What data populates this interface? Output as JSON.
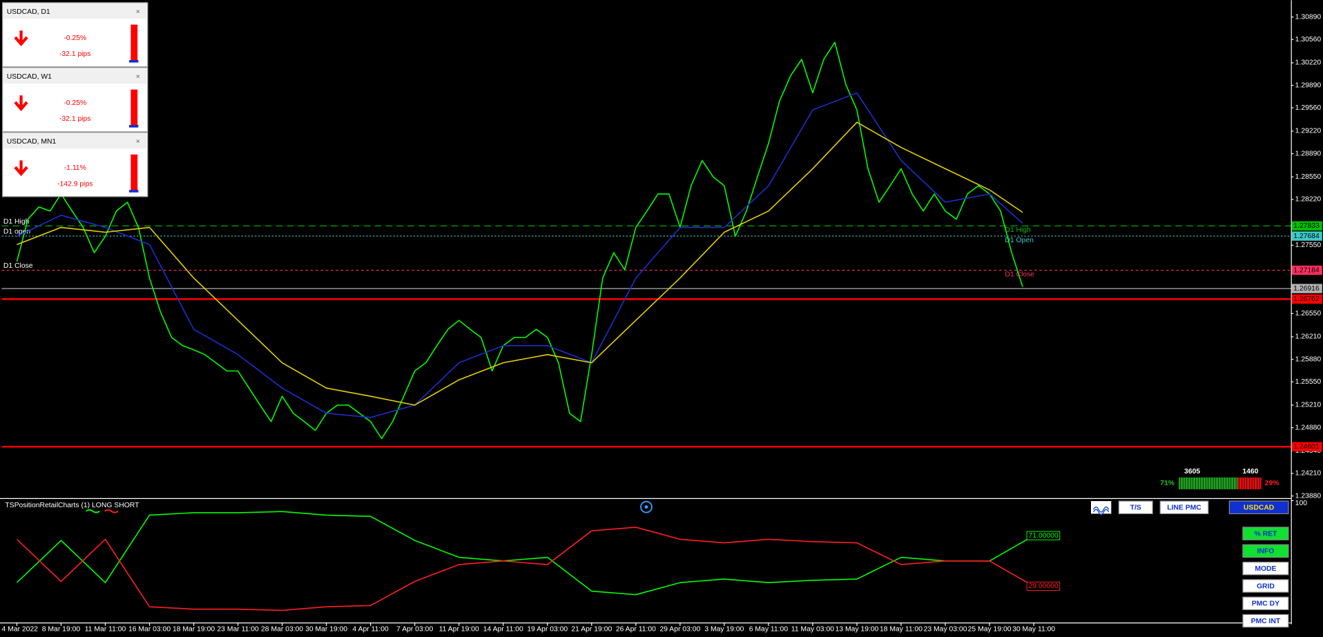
{
  "chart_data": [
    {
      "type": "line",
      "xticks": [
        {
          "value": 0,
          "label": "4 Mar 2022"
        },
        {
          "value": 4,
          "label": "8 Mar 19:00"
        },
        {
          "value": 8,
          "label": "11 Mar 11:00"
        },
        {
          "value": 12,
          "label": "16 Mar 03:00"
        },
        {
          "value": 16,
          "label": "18 Mar 19:00"
        },
        {
          "value": 20,
          "label": "23 Mar 11:00"
        },
        {
          "value": 24,
          "label": "28 Mar 03:00"
        },
        {
          "value": 28,
          "label": "30 Mar 19:00"
        },
        {
          "value": 32,
          "label": "4 Apr 11:00"
        },
        {
          "value": 36,
          "label": "7 Apr 03:00"
        },
        {
          "value": 40,
          "label": "11 Apr 19:00"
        },
        {
          "value": 44,
          "label": "14 Apr 11:00"
        },
        {
          "value": 48,
          "label": "19 Apr 03:00"
        },
        {
          "value": 52,
          "label": "21 Apr 19:00"
        },
        {
          "value": 56,
          "label": "26 Apr 11:00"
        },
        {
          "value": 60,
          "label": "29 Apr 03:00"
        },
        {
          "value": 64,
          "label": "3 May 19:00"
        },
        {
          "value": 68,
          "label": "6 May 11:00"
        },
        {
          "value": 72,
          "label": "11 May 03:00"
        },
        {
          "value": 76,
          "label": "13 May 19:00"
        },
        {
          "value": 80,
          "label": "18 May 11:00"
        },
        {
          "value": 84,
          "label": "23 May 03:00"
        },
        {
          "value": 88,
          "label": "25 May 19:00"
        },
        {
          "value": 92,
          "label": "30 May 11:00"
        }
      ],
      "ylim": [
        1.23855,
        1.31112
      ],
      "yticks": [
        {
          "value": 1.3089,
          "label": "1.30890"
        },
        {
          "value": 1.3056,
          "label": "1.30560"
        },
        {
          "value": 1.3022,
          "label": "1.30220"
        },
        {
          "value": 1.2989,
          "label": "1.29890"
        },
        {
          "value": 1.2956,
          "label": "1.29560"
        },
        {
          "value": 1.2922,
          "label": "1.29220"
        },
        {
          "value": 1.2889,
          "label": "1.28890"
        },
        {
          "value": 1.2855,
          "label": "1.28550"
        },
        {
          "value": 1.2822,
          "label": "1.28220"
        },
        {
          "value": 1.2755,
          "label": "1.27550"
        },
        {
          "value": 1.2655,
          "label": "1.26550"
        },
        {
          "value": 1.2621,
          "label": "1.26210"
        },
        {
          "value": 1.2588,
          "label": "1.25880"
        },
        {
          "value": 1.2555,
          "label": "1.25550"
        },
        {
          "value": 1.2521,
          "label": "1.25210"
        },
        {
          "value": 1.2488,
          "label": "1.24880"
        },
        {
          "value": 1.2454,
          "label": "1.24540"
        },
        {
          "value": 1.2421,
          "label": "1.24210"
        },
        {
          "value": 1.2388,
          "label": "1.23880"
        }
      ],
      "series": [
        {
          "color": "#00ff00",
          "values": [
            1.2731,
            1.2793,
            1.2811,
            1.2805,
            1.283,
            1.2805,
            1.2781,
            1.2744,
            1.2768,
            1.2805,
            1.2818,
            1.2781,
            1.2707,
            1.2657,
            1.262,
            1.2608,
            1.2602,
            1.2595,
            1.2583,
            1.2571,
            1.2571,
            1.2546,
            1.2521,
            1.2497,
            1.2534,
            1.2509,
            1.2497,
            1.2484,
            1.2509,
            1.2521,
            1.2521,
            1.2509,
            1.2497,
            1.2472,
            1.2497,
            1.2534,
            1.2571,
            1.2583,
            1.2608,
            1.2632,
            1.2645,
            1.2632,
            1.262,
            1.2571,
            1.2608,
            1.262,
            1.262,
            1.2632,
            1.262,
            1.2583,
            1.2509,
            1.2497,
            1.2595,
            1.2707,
            1.2744,
            1.2719,
            1.2781,
            1.2805,
            1.283,
            1.283,
            1.2781,
            1.2842,
            1.2879,
            1.2855,
            1.2842,
            1.2768,
            1.2805,
            1.2855,
            1.2904,
            1.2966,
            1.3003,
            1.3027,
            1.2978,
            1.3027,
            1.3052,
            1.299,
            1.2953,
            1.2867,
            1.2818,
            1.2842,
            1.2867,
            1.283,
            1.2805,
            1.283,
            1.2805,
            1.2793,
            1.283,
            1.2842,
            1.283,
            1.2805,
            1.2744,
            1.2694
          ]
        },
        {
          "color": "#1e2fd0",
          "x": [
            0,
            4,
            8,
            12,
            16,
            20,
            24,
            28,
            32,
            36,
            40,
            44,
            48,
            52,
            56,
            60,
            64,
            68,
            72,
            76,
            80,
            84,
            88,
            91
          ],
          "values": [
            1.2768,
            1.2799,
            1.2781,
            1.2756,
            1.2632,
            1.2595,
            1.2546,
            1.2509,
            1.2503,
            1.2521,
            1.2583,
            1.2608,
            1.2608,
            1.2583,
            1.2707,
            1.2781,
            1.2781,
            1.2842,
            1.2953,
            1.2978,
            1.2879,
            1.2818,
            1.283,
            1.2787
          ]
        },
        {
          "color": "#e8d000",
          "x": [
            0,
            4,
            8,
            12,
            16,
            20,
            24,
            28,
            32,
            36,
            40,
            44,
            48,
            52,
            56,
            60,
            64,
            68,
            72,
            76,
            80,
            84,
            88,
            91
          ],
          "values": [
            1.2756,
            1.2781,
            1.2774,
            1.2781,
            1.2707,
            1.2645,
            1.2583,
            1.2546,
            1.2534,
            1.2521,
            1.2558,
            1.2583,
            1.2595,
            1.2583,
            1.2645,
            1.2707,
            1.2774,
            1.2805,
            1.2867,
            1.2935,
            1.2898,
            1.2867,
            1.2836,
            1.2803
          ]
        }
      ],
      "levels": [
        {
          "value": 1.27833,
          "label": "1.27833",
          "color": "#00c000",
          "dash": "8,5",
          "left_text": "D1 High",
          "right_text": "D1 High"
        },
        {
          "value": 1.27684,
          "label": "1.27684",
          "color": "#40c8c8",
          "dash": "2,2",
          "left_text": "D1 open",
          "right_text": "D1 Open"
        },
        {
          "value": 1.27184,
          "label": "1.27184",
          "color": "#ff3060",
          "dash": "3,3",
          "left_text": "D1 Close",
          "right_text": "D1 Close"
        },
        {
          "value": 1.26916,
          "label": "1.26916",
          "color": "#b0b0b0",
          "dash": "none"
        },
        {
          "value": 1.26762,
          "label": "1.26762",
          "color": "#ff0000",
          "dash": "none"
        },
        {
          "value": 1.24601,
          "label": "1.24601",
          "color": "#ff0000",
          "dash": "none"
        }
      ]
    },
    {
      "type": "line",
      "title": "TSPositionRetailCharts (1) LONG SHORT",
      "ylim": [
        0,
        100
      ],
      "yticks": [
        100
      ],
      "series": [
        {
          "color": "#00ff00",
          "x": [
            0,
            4,
            8,
            12,
            16,
            20,
            24,
            28,
            32,
            36,
            40,
            44,
            48,
            52,
            56,
            60,
            64,
            68,
            72,
            76,
            80,
            84,
            88,
            92
          ],
          "values": [
            32,
            67,
            32,
            88,
            90,
            90,
            91,
            88,
            87,
            67,
            53,
            50,
            53,
            25,
            22,
            32,
            35,
            32,
            34,
            35,
            53,
            50,
            50,
            71
          ]
        },
        {
          "color": "#ff2020",
          "x": [
            0,
            4,
            8,
            12,
            16,
            20,
            24,
            28,
            32,
            36,
            40,
            44,
            48,
            52,
            56,
            60,
            64,
            68,
            72,
            76,
            80,
            84,
            88,
            92
          ],
          "values": [
            68,
            33,
            68,
            12,
            10,
            10,
            9,
            12,
            13,
            33,
            47,
            50,
            47,
            75,
            78,
            68,
            65,
            68,
            66,
            65,
            47,
            50,
            50,
            29
          ]
        }
      ],
      "end_labels": [
        {
          "value": 71,
          "label": "71.00000",
          "color": "#00ff00"
        },
        {
          "value": 29,
          "label": "29.00000",
          "color": "#ff2020"
        }
      ]
    }
  ],
  "panels": [
    {
      "title": "USDCAD, D1",
      "change": "-0.25%",
      "pips": "-32.1 pips"
    },
    {
      "title": "USDCAD, W1",
      "change": "-0.25%",
      "pips": "-32.1 pips"
    },
    {
      "title": "USDCAD, MN1",
      "change": "-1.11%",
      "pips": "-142.9 pips"
    }
  ],
  "sentiment": {
    "values": [
      3605,
      1460
    ],
    "percent_labels": [
      "71%",
      "29%"
    ]
  },
  "top_buttons": [
    "T/S",
    "LINE PMC",
    "USDCAD"
  ],
  "side_buttons": [
    "% RET",
    "INFO",
    "MODE",
    "GRID",
    "PMC DY",
    "PMC INT"
  ]
}
